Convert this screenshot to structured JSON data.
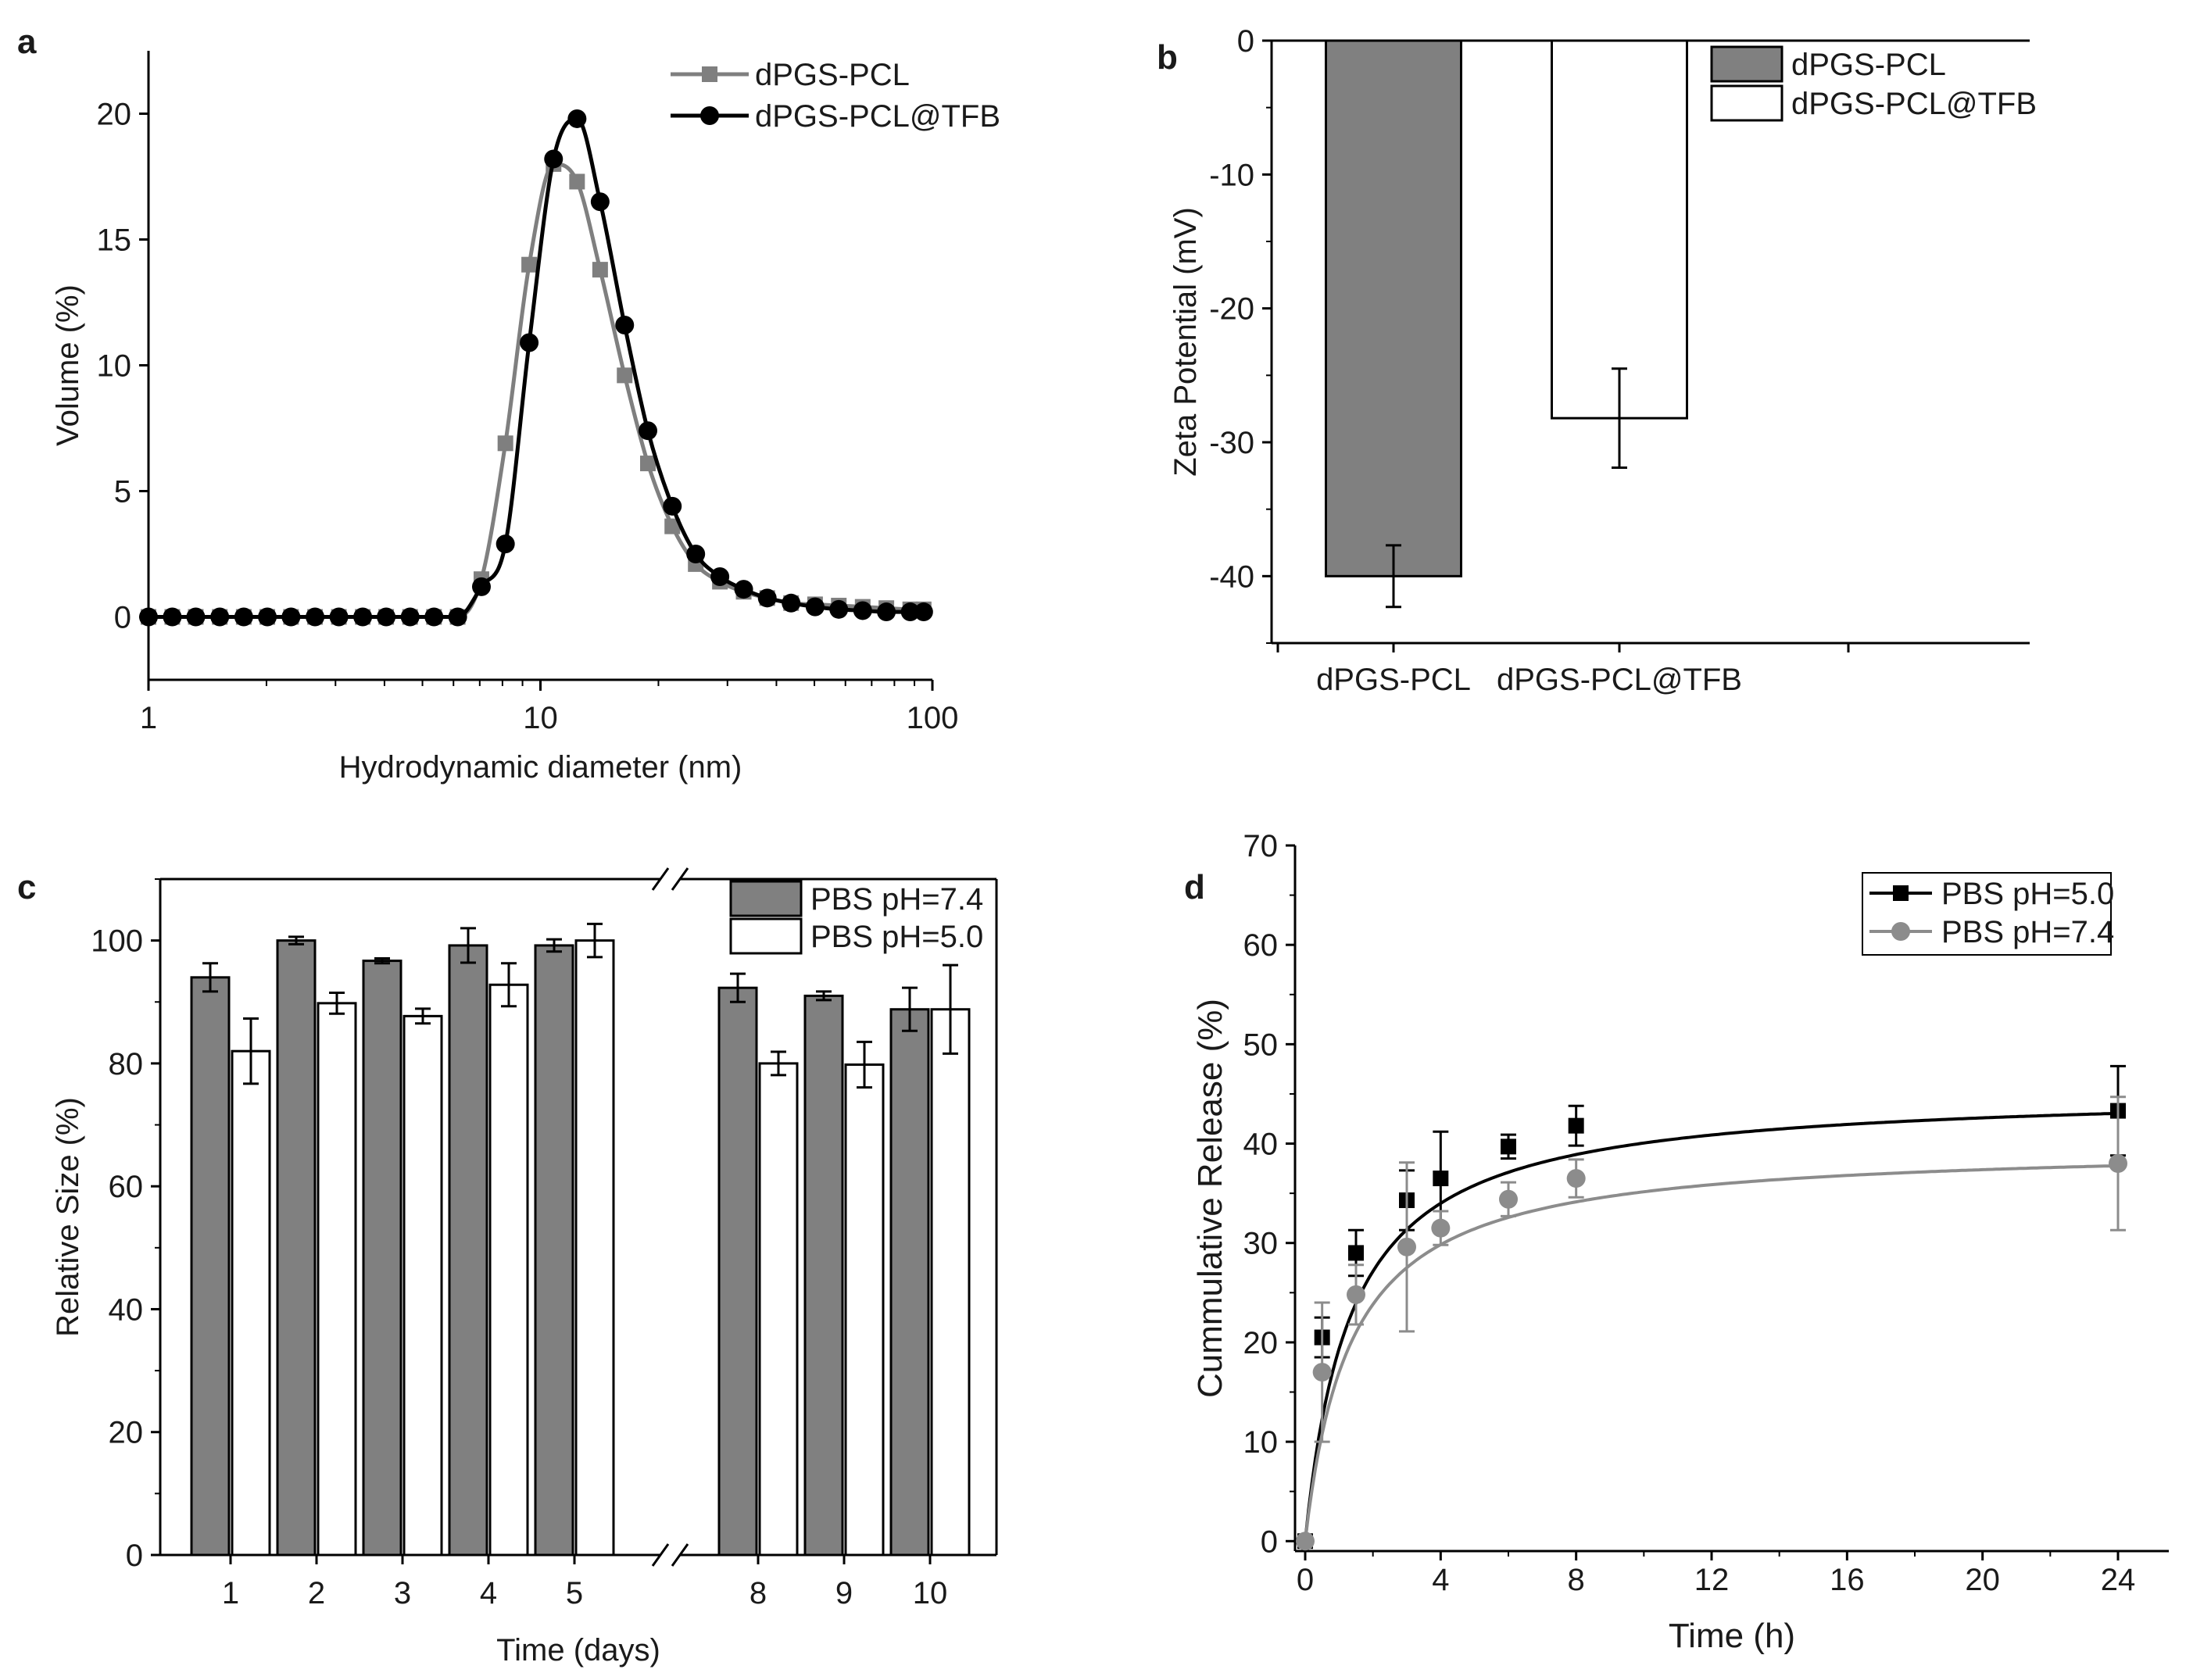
{
  "colors": {
    "gray": "#7f7f7f",
    "gray_marker": "#8c8c8c",
    "black": "#000000",
    "bar_fill": "#808080",
    "white": "#ffffff"
  },
  "chart_data": [
    {
      "panel": "a",
      "type": "line",
      "xscale": "log",
      "xlabel": "Hydrodynamic diameter (nm)",
      "ylabel": "Volume (%)",
      "xlim": [
        1,
        100
      ],
      "ylim": [
        -2.5,
        22.5
      ],
      "xticks": [
        1,
        10,
        100
      ],
      "xtick_labels": [
        "1",
        "10",
        "100"
      ],
      "yticks": [
        0,
        5,
        10,
        15,
        20
      ],
      "ytick_labels": [
        "0",
        "5",
        "10",
        "15",
        "20"
      ],
      "legend": "top-right",
      "series": [
        {
          "name": "dPGS-PCL",
          "color": "#7f7f7f",
          "marker": "square",
          "x": [
            1.0,
            1.15,
            1.32,
            1.52,
            1.75,
            2.01,
            2.31,
            2.66,
            3.06,
            3.52,
            4.04,
            4.65,
            5.35,
            6.15,
            7.07,
            8.14,
            9.36,
            10.8,
            12.4,
            14.2,
            16.4,
            18.8,
            21.7,
            24.9,
            28.7,
            33.0,
            37.9,
            43.6,
            50.2,
            57.7,
            66.4,
            76.3,
            87.8,
            95.0
          ],
          "y": [
            0,
            0,
            0,
            0,
            0,
            0,
            0,
            0,
            0,
            0,
            0,
            0,
            0,
            0,
            1.5,
            6.9,
            14.0,
            18.0,
            17.3,
            13.8,
            9.6,
            6.1,
            3.6,
            2.1,
            1.4,
            1.0,
            0.75,
            0.55,
            0.5,
            0.45,
            0.4,
            0.35,
            0.3,
            0.3
          ]
        },
        {
          "name": "dPGS-PCL@TFB",
          "color": "#000000",
          "marker": "circle",
          "x": [
            1.0,
            1.15,
            1.32,
            1.52,
            1.75,
            2.01,
            2.31,
            2.66,
            3.06,
            3.52,
            4.04,
            4.65,
            5.35,
            6.15,
            7.07,
            8.14,
            9.36,
            10.8,
            12.4,
            14.2,
            16.4,
            18.8,
            21.7,
            24.9,
            28.7,
            33.0,
            37.9,
            43.6,
            50.2,
            57.7,
            66.4,
            76.3,
            87.8,
            95.0
          ],
          "y": [
            0,
            0,
            0,
            0,
            0,
            0,
            0,
            0,
            0,
            0,
            0,
            0,
            0,
            0,
            1.2,
            2.9,
            10.9,
            18.2,
            19.8,
            16.5,
            11.6,
            7.4,
            4.4,
            2.5,
            1.6,
            1.1,
            0.75,
            0.55,
            0.4,
            0.3,
            0.25,
            0.2,
            0.2,
            0.2
          ]
        }
      ]
    },
    {
      "panel": "b",
      "type": "bar",
      "xlabel": "",
      "ylabel": "Zeta Potential (mV)",
      "ylim": [
        -45,
        0
      ],
      "yticks": [
        0,
        -10,
        -20,
        -30,
        -40
      ],
      "ytick_labels": [
        "0",
        "-10",
        "-20",
        "-30",
        "-40"
      ],
      "categories": [
        "dPGS-PCL",
        "dPGS-PCL@TFB"
      ],
      "values": [
        -40.0,
        -28.2
      ],
      "errors": [
        2.3,
        3.7
      ],
      "fills": [
        "#808080",
        "#ffffff"
      ],
      "legend": "top-right",
      "legend_entries": [
        "dPGS-PCL",
        "dPGS-PCL@TFB"
      ]
    },
    {
      "panel": "c",
      "type": "bar",
      "xlabel": "Time (days)",
      "ylabel": "Relative Size (%)",
      "ylim": [
        0,
        110
      ],
      "yticks": [
        0,
        20,
        40,
        60,
        80,
        100
      ],
      "ytick_labels": [
        "0",
        "20",
        "40",
        "60",
        "80",
        "100"
      ],
      "axis_break": "between 5 and 8",
      "categories": [
        "1",
        "2",
        "3",
        "4",
        "5",
        "8",
        "9",
        "10"
      ],
      "legend": "top-right",
      "series": [
        {
          "name": "PBS pH=7.4",
          "fill": "#808080",
          "values": [
            94.0,
            100.0,
            96.7,
            99.2,
            99.2,
            92.3,
            91.0,
            88.8
          ],
          "errors": [
            2.3,
            0.6,
            0.4,
            2.8,
            1.0,
            2.3,
            0.7,
            3.5
          ]
        },
        {
          "name": "PBS pH=5.0",
          "fill": "#ffffff",
          "values": [
            82.0,
            89.8,
            87.7,
            92.8,
            100.0,
            80.0,
            79.8,
            88.8
          ],
          "errors": [
            5.3,
            1.7,
            1.2,
            3.5,
            2.7,
            1.9,
            3.7,
            7.2
          ]
        }
      ]
    },
    {
      "panel": "d",
      "type": "line",
      "xlabel": "Time (h)",
      "ylabel": "Cummulative Release (%)",
      "xlim": [
        -0.3,
        25.5
      ],
      "ylim": [
        -1,
        70
      ],
      "xticks": [
        0,
        4,
        8,
        12,
        16,
        20,
        24
      ],
      "xtick_labels": [
        "0",
        "4",
        "8",
        "12",
        "16",
        "20",
        "24"
      ],
      "yticks": [
        0,
        10,
        20,
        30,
        40,
        50,
        60,
        70
      ],
      "ytick_labels": [
        "0",
        "10",
        "20",
        "30",
        "40",
        "50",
        "60",
        "70"
      ],
      "legend": "top-right",
      "series": [
        {
          "name": "PBS pH=5.0",
          "color": "#000000",
          "marker": "square",
          "x": [
            0,
            0.5,
            1.5,
            3,
            4,
            6,
            8,
            24
          ],
          "y": [
            0,
            20.5,
            29.0,
            34.3,
            36.5,
            39.7,
            41.8,
            43.3
          ],
          "errors": [
            0,
            2.0,
            2.3,
            3.0,
            4.7,
            1.2,
            2.0,
            4.5
          ]
        },
        {
          "name": "PBS pH=7.4",
          "color": "#8c8c8c",
          "marker": "circle",
          "x": [
            0,
            0.5,
            1.5,
            3,
            4,
            6,
            8,
            24
          ],
          "y": [
            0,
            17.0,
            24.8,
            29.6,
            31.5,
            34.4,
            36.5,
            38.0
          ],
          "errors": [
            0,
            7.0,
            3.0,
            8.5,
            1.7,
            1.7,
            1.9,
            6.7
          ]
        }
      ]
    }
  ]
}
